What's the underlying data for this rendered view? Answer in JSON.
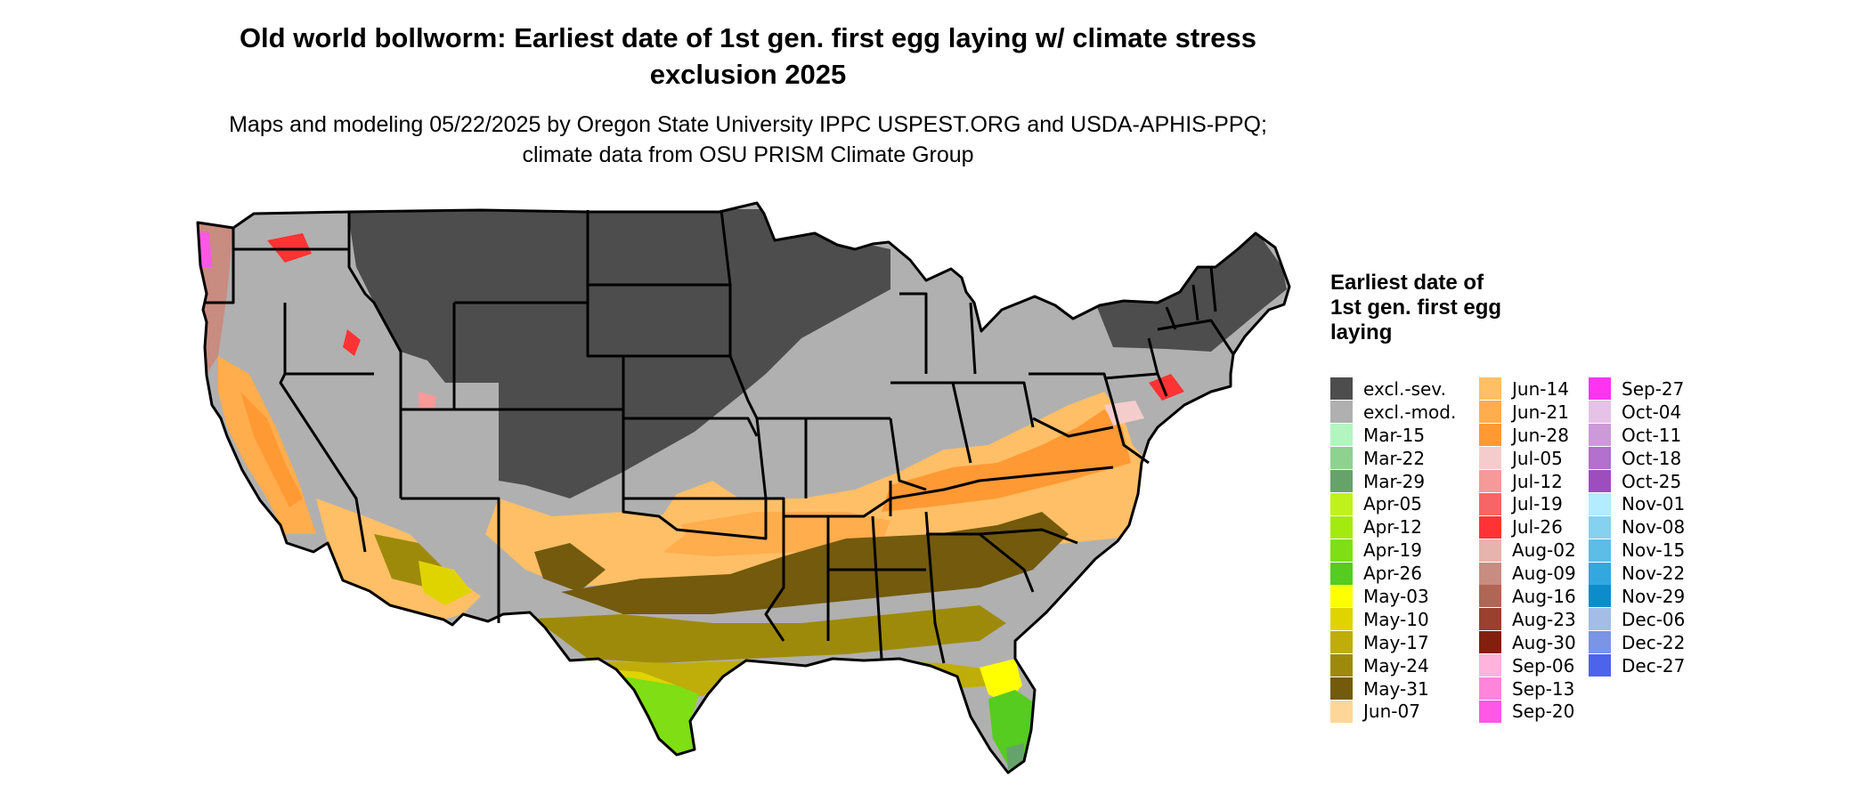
{
  "title": "Old world bollworm: Earliest date of 1st gen. first egg laying w/ climate stress exclusion 2025",
  "subtitle": "Maps and modeling 05/22/2025 by Oregon State University IPPC USPEST.ORG and USDA-APHIS-PPQ; climate data from OSU PRISM Climate Group",
  "legend": {
    "title": "Earliest date of 1st gen. first egg laying",
    "columns": [
      [
        {
          "label": "excl.-sev.",
          "color": "#4d4d4d"
        },
        {
          "label": "excl.-mod.",
          "color": "#b0b0b0"
        },
        {
          "label": "Mar-15",
          "color": "#b3f5c0"
        },
        {
          "label": "Mar-22",
          "color": "#8fd18f"
        },
        {
          "label": "Mar-29",
          "color": "#66a36b"
        },
        {
          "label": "Apr-05",
          "color": "#bff21a"
        },
        {
          "label": "Apr-12",
          "color": "#a3eb0f"
        },
        {
          "label": "Apr-19",
          "color": "#7fde14"
        },
        {
          "label": "Apr-26",
          "color": "#55cc1f"
        },
        {
          "label": "May-03",
          "color": "#ffff00"
        },
        {
          "label": "May-10",
          "color": "#e0d400"
        },
        {
          "label": "May-17",
          "color": "#bfad0a"
        },
        {
          "label": "May-24",
          "color": "#9e8a0a"
        },
        {
          "label": "May-31",
          "color": "#735a0d"
        },
        {
          "label": "Jun-07",
          "color": "#ffd699"
        }
      ],
      [
        {
          "label": "Jun-14",
          "color": "#ffbf66"
        },
        {
          "label": "Jun-21",
          "color": "#ffad4d"
        },
        {
          "label": "Jun-28",
          "color": "#ff9933"
        },
        {
          "label": "Jul-05",
          "color": "#f5cccc"
        },
        {
          "label": "Jul-12",
          "color": "#f59999"
        },
        {
          "label": "Jul-19",
          "color": "#f76666"
        },
        {
          "label": "Jul-26",
          "color": "#ff3333"
        },
        {
          "label": "Aug-02",
          "color": "#e6b3ad"
        },
        {
          "label": "Aug-09",
          "color": "#c98c80"
        },
        {
          "label": "Aug-16",
          "color": "#b06655"
        },
        {
          "label": "Aug-23",
          "color": "#99402e"
        },
        {
          "label": "Aug-30",
          "color": "#82200d"
        },
        {
          "label": "Sep-06",
          "color": "#ffb3dd"
        },
        {
          "label": "Sep-13",
          "color": "#ff85db"
        },
        {
          "label": "Sep-20",
          "color": "#ff57e6"
        }
      ],
      [
        {
          "label": "Sep-27",
          "color": "#ff33f0"
        },
        {
          "label": "Oct-04",
          "color": "#e6c2e6"
        },
        {
          "label": "Oct-11",
          "color": "#cc99d9"
        },
        {
          "label": "Oct-18",
          "color": "#b370cc"
        },
        {
          "label": "Oct-25",
          "color": "#9e4dbf"
        },
        {
          "label": "Nov-01",
          "color": "#b3ebff"
        },
        {
          "label": "Nov-08",
          "color": "#85d1f0"
        },
        {
          "label": "Nov-15",
          "color": "#5cbde6"
        },
        {
          "label": "Nov-22",
          "color": "#33a8e0"
        },
        {
          "label": "Nov-29",
          "color": "#0d8ccc"
        },
        {
          "label": "Dec-06",
          "color": "#a3bde6"
        },
        {
          "label": "Dec-22",
          "color": "#7a94e6"
        },
        {
          "label": "Dec-27",
          "color": "#4d63eb"
        }
      ]
    ]
  }
}
